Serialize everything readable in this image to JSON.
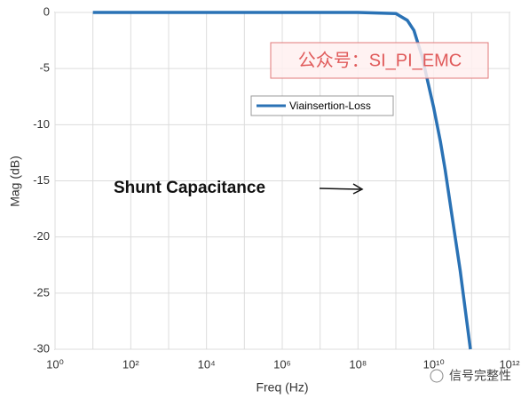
{
  "chart_data": {
    "type": "line",
    "log_x": true,
    "x_label": "Freq (Hz)",
    "y_label": "Mag (dB)",
    "x": [
      10,
      100,
      1000,
      10000,
      100000,
      1000000,
      10000000,
      100000000,
      1000000000,
      2000000000,
      3000000000,
      5000000000,
      7000000000,
      10000000000,
      15000000000,
      20000000000,
      30000000000,
      50000000000,
      70000000000,
      93000000000
    ],
    "series": [
      {
        "name": "Viainsertion-Loss",
        "color": "#2a72b5",
        "values": [
          0,
          0,
          0,
          0,
          0,
          0,
          0,
          0,
          -0.1,
          -0.7,
          -1.6,
          -4,
          -6.2,
          -8.5,
          -11.5,
          -14,
          -18,
          -23,
          -26.8,
          -30
        ]
      }
    ],
    "xlim": [
      1,
      1000000000000
    ],
    "ylim": [
      -30,
      0
    ],
    "xticks": [
      {
        "value": 1,
        "label": "10⁰"
      },
      {
        "value": 100,
        "label": "10²"
      },
      {
        "value": 10000,
        "label": "10⁴"
      },
      {
        "value": 1000000,
        "label": "10⁶"
      },
      {
        "value": 100000000,
        "label": "10⁸"
      },
      {
        "value": 10000000000,
        "label": "10¹⁰"
      },
      {
        "value": 1000000000000,
        "label": "10¹²"
      }
    ],
    "minor_xticks": [
      10,
      1000,
      100000,
      10000000,
      1000000000,
      100000000000
    ],
    "yticks": [
      0,
      -5,
      -10,
      -15,
      -20,
      -25,
      -30
    ],
    "grid": true,
    "legend": "upper center",
    "annotations": [
      "Shunt Capacitance"
    ],
    "watermarks": [
      "公众号：SI_PI_EMC",
      "信号完整性"
    ]
  }
}
